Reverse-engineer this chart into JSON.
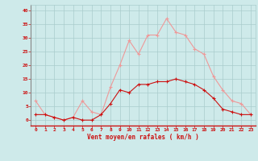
{
  "hours": [
    0,
    1,
    2,
    3,
    4,
    5,
    6,
    7,
    8,
    9,
    10,
    11,
    12,
    13,
    14,
    15,
    16,
    17,
    18,
    19,
    20,
    21,
    22,
    23
  ],
  "wind_avg": [
    2,
    2,
    1,
    0,
    1,
    0,
    0,
    2,
    6,
    11,
    10,
    13,
    13,
    14,
    14,
    15,
    14,
    13,
    11,
    8,
    4,
    3,
    2,
    2
  ],
  "wind_gust": [
    7,
    2,
    1,
    0,
    1,
    7,
    3,
    2,
    12,
    20,
    29,
    24,
    31,
    31,
    37,
    32,
    31,
    26,
    24,
    16,
    11,
    7,
    6,
    2
  ],
  "xlabel": "Vent moyen/en rafales ( km/h )",
  "ylim": [
    -2,
    42
  ],
  "yticks": [
    0,
    5,
    10,
    15,
    20,
    25,
    30,
    35,
    40
  ],
  "bg_color": "#ceeaea",
  "grid_color": "#aacccc",
  "line_avg_color": "#cc1111",
  "line_gust_color": "#ee9999",
  "spine_color": "#888888",
  "text_color": "#cc1111"
}
